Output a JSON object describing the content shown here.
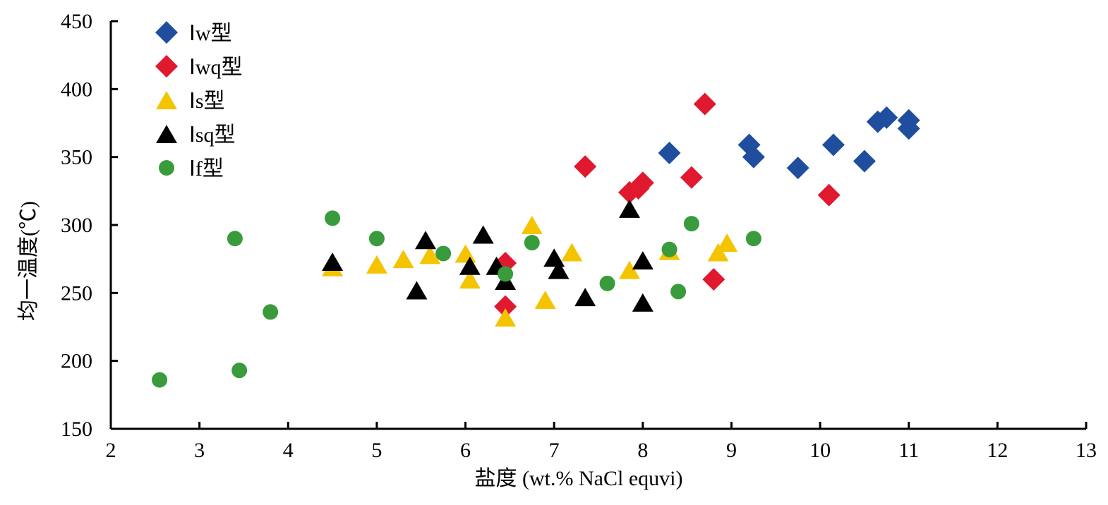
{
  "chart_data": {
    "type": "scatter",
    "title": "",
    "xlabel": "盐度 (wt.% NaCl equvi)",
    "ylabel": "均一温度(℃)",
    "xlim": [
      2,
      13
    ],
    "ylim": [
      150,
      450
    ],
    "xticks": [
      2,
      3,
      4,
      5,
      6,
      7,
      8,
      9,
      10,
      11,
      12,
      13
    ],
    "yticks": [
      150,
      200,
      250,
      300,
      350,
      400,
      450
    ],
    "legend_position": "top-left",
    "grid": false,
    "series": [
      {
        "name": "Ⅰw型",
        "marker": "diamond",
        "color": "#1f4e9e",
        "points": [
          [
            8.3,
            353
          ],
          [
            9.2,
            359
          ],
          [
            9.25,
            350
          ],
          [
            9.75,
            342
          ],
          [
            10.15,
            359
          ],
          [
            10.5,
            347
          ],
          [
            10.65,
            376
          ],
          [
            10.75,
            379
          ],
          [
            11.0,
            377
          ],
          [
            11.0,
            371
          ]
        ]
      },
      {
        "name": "Ⅰwq型",
        "marker": "diamond",
        "color": "#e0192e",
        "points": [
          [
            8.7,
            389
          ],
          [
            7.35,
            343
          ],
          [
            7.85,
            324
          ],
          [
            7.95,
            327
          ],
          [
            8.0,
            331
          ],
          [
            8.55,
            335
          ],
          [
            10.1,
            322
          ],
          [
            6.45,
            272
          ],
          [
            6.45,
            240
          ],
          [
            8.8,
            260
          ]
        ]
      },
      {
        "name": "Ⅰs型",
        "marker": "triangle",
        "color": "#f5c400",
        "points": [
          [
            4.5,
            269
          ],
          [
            5.0,
            271
          ],
          [
            5.3,
            275
          ],
          [
            5.6,
            278
          ],
          [
            6.0,
            279
          ],
          [
            6.05,
            260
          ],
          [
            6.45,
            232
          ],
          [
            6.75,
            300
          ],
          [
            6.9,
            245
          ],
          [
            7.2,
            280
          ],
          [
            7.85,
            267
          ],
          [
            8.3,
            281
          ],
          [
            8.85,
            280
          ],
          [
            8.95,
            287
          ]
        ]
      },
      {
        "name": "Ⅰsq型",
        "marker": "triangle",
        "color": "#000000",
        "points": [
          [
            4.5,
            273
          ],
          [
            5.45,
            252
          ],
          [
            5.55,
            289
          ],
          [
            6.05,
            270
          ],
          [
            6.2,
            293
          ],
          [
            6.35,
            270
          ],
          [
            6.45,
            259
          ],
          [
            7.0,
            276
          ],
          [
            7.05,
            267
          ],
          [
            7.35,
            247
          ],
          [
            7.85,
            312
          ],
          [
            8.0,
            274
          ],
          [
            8.0,
            243
          ]
        ]
      },
      {
        "name": "Ⅰf型",
        "marker": "circle",
        "color": "#3a9b3c",
        "points": [
          [
            2.55,
            186
          ],
          [
            3.4,
            290
          ],
          [
            3.45,
            193
          ],
          [
            3.8,
            236
          ],
          [
            4.5,
            305
          ],
          [
            5.0,
            290
          ],
          [
            5.75,
            279
          ],
          [
            6.45,
            264
          ],
          [
            6.75,
            287
          ],
          [
            7.6,
            257
          ],
          [
            8.3,
            282
          ],
          [
            8.4,
            251
          ],
          [
            8.55,
            301
          ],
          [
            9.25,
            290
          ]
        ]
      }
    ]
  }
}
